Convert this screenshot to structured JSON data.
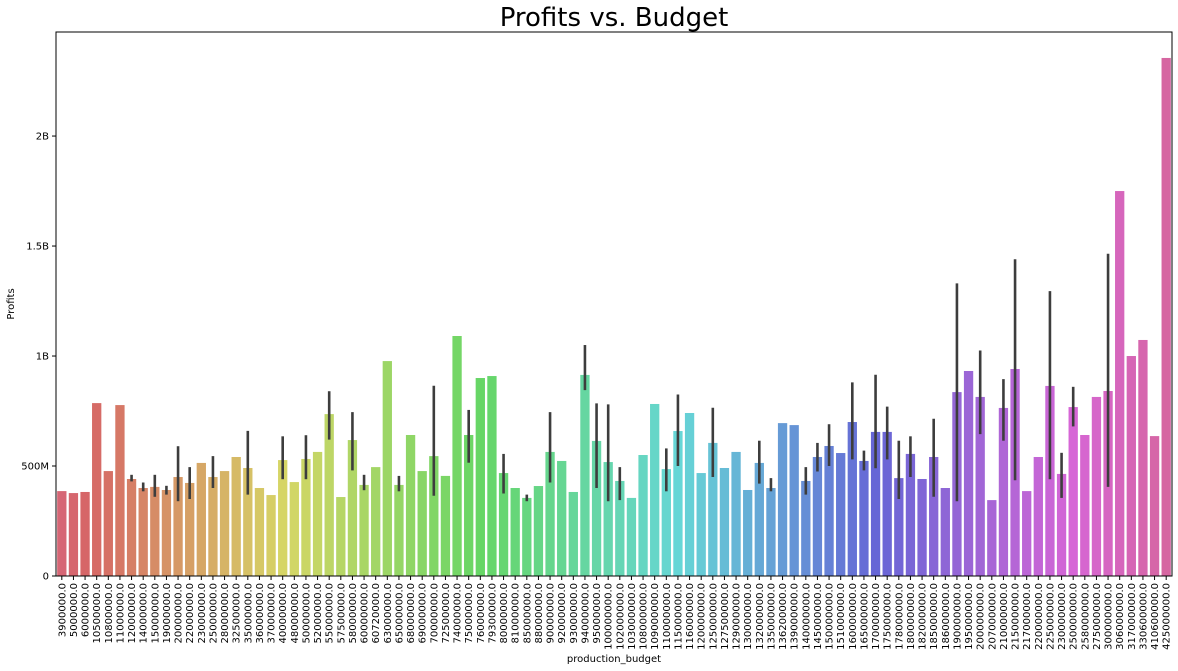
{
  "chart_data": {
    "type": "bar",
    "title": "Profits vs. Budget",
    "x_label": "production_budget",
    "y_label": "Profits",
    "categories": [
      "3900000.0",
      "5000000.0",
      "6000000.0",
      "10500000.0",
      "10800000.0",
      "11000000.0",
      "12000000.0",
      "14000000.0",
      "15000000.0",
      "19000000.0",
      "20000000.0",
      "22000000.0",
      "23000000.0",
      "25000000.0",
      "28000000.0",
      "32500000.0",
      "35000000.0",
      "36000000.0",
      "37000000.0",
      "40000000.0",
      "48000000.0",
      "50000000.0",
      "52000000.0",
      "55000000.0",
      "57500000.0",
      "58000000.0",
      "60000000.0",
      "60720000.0",
      "63000000.0",
      "65000000.0",
      "68000000.0",
      "69000000.0",
      "70000000.0",
      "72500000.0",
      "74000000.0",
      "75000000.0",
      "76000000.0",
      "79300000.0",
      "80000000.0",
      "81000000.0",
      "85000000.0",
      "88000000.0",
      "90000000.0",
      "92000000.0",
      "93000000.0",
      "94000000.0",
      "95000000.0",
      "100000000.0",
      "102000000.0",
      "103000000.0",
      "108000000.0",
      "109000000.0",
      "110000000.0",
      "115000000.0",
      "116000000.0",
      "120000000.0",
      "125000000.0",
      "127500000.0",
      "129000000.0",
      "130000000.0",
      "132000000.0",
      "135000000.0",
      "136200000.0",
      "139000000.0",
      "140000000.0",
      "145000000.0",
      "150000000.0",
      "151000000.0",
      "160000000.0",
      "165000000.0",
      "170000000.0",
      "175000000.0",
      "178000000.0",
      "180000000.0",
      "182000000.0",
      "185000000.0",
      "186000000.0",
      "190000000.0",
      "195000000.0",
      "200000000.0",
      "207000000.0",
      "210000000.0",
      "215000000.0",
      "217000000.0",
      "220000000.0",
      "225000000.0",
      "230000000.0",
      "250000000.0",
      "258000000.0",
      "275000000.0",
      "300000000.0",
      "306000000.0",
      "317000000.0",
      "330600000.0",
      "410600000.0",
      "425000000.0"
    ],
    "values": [
      386000000.0,
      377000000.0,
      382000000.0,
      786000000.0,
      477000000.0,
      777000000.0,
      441000000.0,
      400000000.0,
      405000000.0,
      391000000.0,
      450000000.0,
      423000000.0,
      514000000.0,
      450000000.0,
      477000000.0,
      541000000.0,
      491000000.0,
      400000000.0,
      368000000.0,
      527000000.0,
      427000000.0,
      532000000.0,
      564000000.0,
      736000000.0,
      359000000.0,
      618000000.0,
      414000000.0,
      495000000.0,
      977000000.0,
      414000000.0,
      641000000.0,
      477000000.0,
      545000000.0,
      455000000.0,
      1091000000.0,
      641000000.0,
      900000000.0,
      909000000.0,
      468000000.0,
      400000000.0,
      355000000.0,
      409000000.0,
      564000000.0,
      523000000.0,
      382000000.0,
      914000000.0,
      614000000.0,
      518000000.0,
      432000000.0,
      355000000.0,
      550000000.0,
      782000000.0,
      486000000.0,
      659000000.0,
      741000000.0,
      468000000.0,
      605000000.0,
      491000000.0,
      564000000.0,
      391000000.0,
      514000000.0,
      400000000.0,
      695000000.0,
      686000000.0,
      432000000.0,
      541000000.0,
      591000000.0,
      559000000.0,
      700000000.0,
      523000000.0,
      655000000.0,
      655000000.0,
      445000000.0,
      555000000.0,
      441000000.0,
      541000000.0,
      400000000.0,
      836000000.0,
      932000000.0,
      814000000.0,
      345000000.0,
      764000000.0,
      941000000.0,
      386000000.0,
      541000000.0,
      864000000.0,
      464000000.0,
      768000000.0,
      641000000.0,
      814000000.0,
      841000000.0,
      1750000000.0,
      1000000000.0,
      1073000000.0,
      636000000.0,
      2355000000.0
    ],
    "ci": [
      null,
      null,
      null,
      null,
      null,
      null,
      [
        430000000.0,
        460000000.0
      ],
      [
        385000000.0,
        425000000.0
      ],
      [
        360000000.0,
        460000000.0
      ],
      [
        370000000.0,
        410000000.0
      ],
      [
        340000000.0,
        590000000.0
      ],
      [
        350000000.0,
        495000000.0
      ],
      null,
      [
        400000000.0,
        545000000.0
      ],
      null,
      null,
      [
        370000000.0,
        660000000.0
      ],
      null,
      null,
      [
        440000000.0,
        635000000.0
      ],
      null,
      [
        440000000.0,
        640000000.0
      ],
      null,
      [
        620000000.0,
        840000000.0
      ],
      null,
      [
        480000000.0,
        745000000.0
      ],
      [
        390000000.0,
        460000000.0
      ],
      null,
      null,
      [
        385000000.0,
        455000000.0
      ],
      null,
      null,
      [
        365000000.0,
        865000000.0
      ],
      null,
      null,
      [
        515000000.0,
        755000000.0
      ],
      null,
      null,
      [
        375000000.0,
        555000000.0
      ],
      null,
      [
        340000000.0,
        370000000.0
      ],
      null,
      [
        425000000.0,
        745000000.0
      ],
      null,
      null,
      [
        845000000.0,
        1050000000.0
      ],
      [
        400000000.0,
        785000000.0
      ],
      [
        340000000.0,
        780000000.0
      ],
      [
        345000000.0,
        495000000.0
      ],
      null,
      null,
      null,
      [
        385000000.0,
        580000000.0
      ],
      [
        500000000.0,
        825000000.0
      ],
      null,
      null,
      [
        450000000.0,
        765000000.0
      ],
      null,
      null,
      null,
      [
        420000000.0,
        615000000.0
      ],
      [
        385000000.0,
        445000000.0
      ],
      null,
      null,
      [
        370000000.0,
        495000000.0
      ],
      [
        475000000.0,
        605000000.0
      ],
      [
        500000000.0,
        690000000.0
      ],
      null,
      [
        530000000.0,
        880000000.0
      ],
      [
        480000000.0,
        570000000.0
      ],
      [
        490000000.0,
        915000000.0
      ],
      [
        530000000.0,
        770000000.0
      ],
      [
        350000000.0,
        615000000.0
      ],
      [
        450000000.0,
        635000000.0
      ],
      null,
      [
        360000000.0,
        715000000.0
      ],
      null,
      [
        340000000.0,
        1330000000.0
      ],
      null,
      [
        645000000.0,
        1025000000.0
      ],
      null,
      [
        615000000.0,
        895000000.0
      ],
      [
        435000000.0,
        1440000000.0
      ],
      null,
      null,
      [
        440000000.0,
        1295000000.0
      ],
      [
        355000000.0,
        560000000.0
      ],
      [
        680000000.0,
        860000000.0
      ],
      null,
      null,
      [
        405000000.0,
        1465000000.0
      ],
      null,
      null,
      null,
      null,
      null
    ],
    "ci_color": "#3d3d3d",
    "palette": "husl",
    "ylim": [
      0,
      2473000000.0
    ],
    "yticks": [
      0,
      {
        "value": 500000000.0,
        "label": "500M"
      },
      {
        "value": 1000000000.0,
        "label": "1B"
      },
      {
        "value": 1500000000.0,
        "label": "1.5B"
      },
      {
        "value": 2000000000.0,
        "label": "2B"
      }
    ],
    "grid": false
  }
}
